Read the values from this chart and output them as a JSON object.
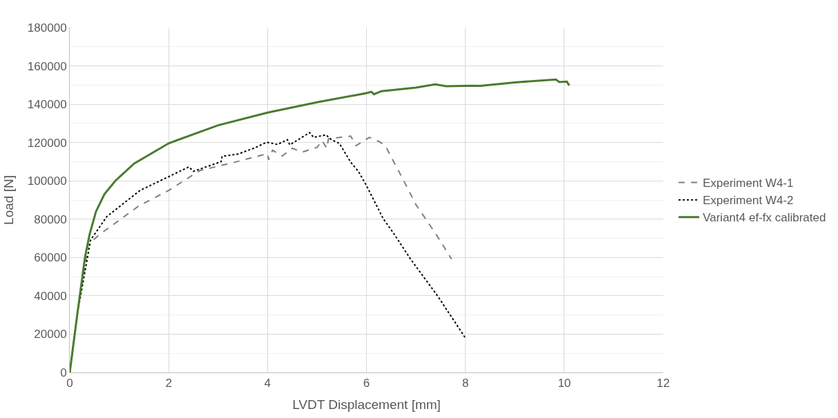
{
  "chart_data": {
    "type": "line",
    "xlabel": "LVDT Displacement [mm]",
    "ylabel": "Load [N]",
    "xlim": [
      0,
      12
    ],
    "xticks": [
      0,
      2,
      4,
      6,
      8,
      10,
      12
    ],
    "ylim": [
      0,
      180000
    ],
    "yticks": [
      0,
      20000,
      40000,
      60000,
      80000,
      100000,
      120000,
      140000,
      160000,
      180000
    ],
    "grid": true,
    "legend": "right",
    "marker": "none",
    "series": [
      {
        "name": "Experiment W4-1",
        "color": "#7f7f7f",
        "line_style": "dashed",
        "x": [
          0,
          0.15,
          0.37,
          0.6,
          0.97,
          1.4,
          2.0,
          2.63,
          3.3,
          4.0,
          4.02,
          4.1,
          4.3,
          4.5,
          4.7,
          5.0,
          5.1,
          5.2,
          5.23,
          5.4,
          5.68,
          5.79,
          6.06,
          6.28,
          6.39,
          6.73,
          7.0,
          7.39,
          7.58,
          7.72
        ],
        "values": [
          0,
          30000,
          66600,
          72000,
          78900,
          87000,
          95000,
          105400,
          109500,
          114200,
          111000,
          116000,
          113000,
          117000,
          115000,
          117500,
          121000,
          117000,
          122000,
          122500,
          123400,
          118400,
          122700,
          120200,
          117900,
          101200,
          87600,
          72800,
          65000,
          59200
        ]
      },
      {
        "name": "Experiment W4-2",
        "color": "#000000",
        "line_style": "dotted",
        "x": [
          0,
          0.15,
          0.42,
          0.75,
          1.42,
          2.41,
          2.5,
          3.06,
          3.08,
          3.4,
          3.74,
          3.98,
          4.2,
          4.4,
          4.45,
          4.85,
          4.93,
          5.18,
          5.29,
          5.45,
          5.68,
          5.84,
          6.0,
          6.34,
          6.56,
          6.89,
          7.45,
          8.0
        ],
        "values": [
          0,
          30000,
          69100,
          81400,
          95000,
          107300,
          105000,
          110000,
          112800,
          114000,
          117200,
          120200,
          119000,
          121500,
          118800,
          125200,
          122700,
          124000,
          121500,
          119600,
          109800,
          104800,
          97500,
          80200,
          72200,
          59200,
          39500,
          18000
        ]
      },
      {
        "name": "Variant4 ef-fx calibrated",
        "color": "#4a7a2e",
        "line_style": "solid",
        "x": [
          0,
          0.15,
          0.31,
          0.4,
          0.53,
          0.7,
          0.92,
          1.3,
          2.0,
          3.0,
          4.0,
          5.0,
          6.0,
          6.1,
          6.15,
          6.3,
          7.0,
          7.39,
          7.61,
          7.8,
          8.13,
          8.3,
          9.0,
          9.83,
          9.9,
          10.05,
          10.1
        ],
        "values": [
          0,
          30000,
          60500,
          72000,
          84000,
          93000,
          100000,
          109000,
          119600,
          129000,
          135600,
          141000,
          145800,
          146500,
          145200,
          146800,
          148700,
          150400,
          149400,
          149500,
          149700,
          149600,
          151400,
          152900,
          151600,
          151800,
          149800
        ]
      }
    ]
  }
}
